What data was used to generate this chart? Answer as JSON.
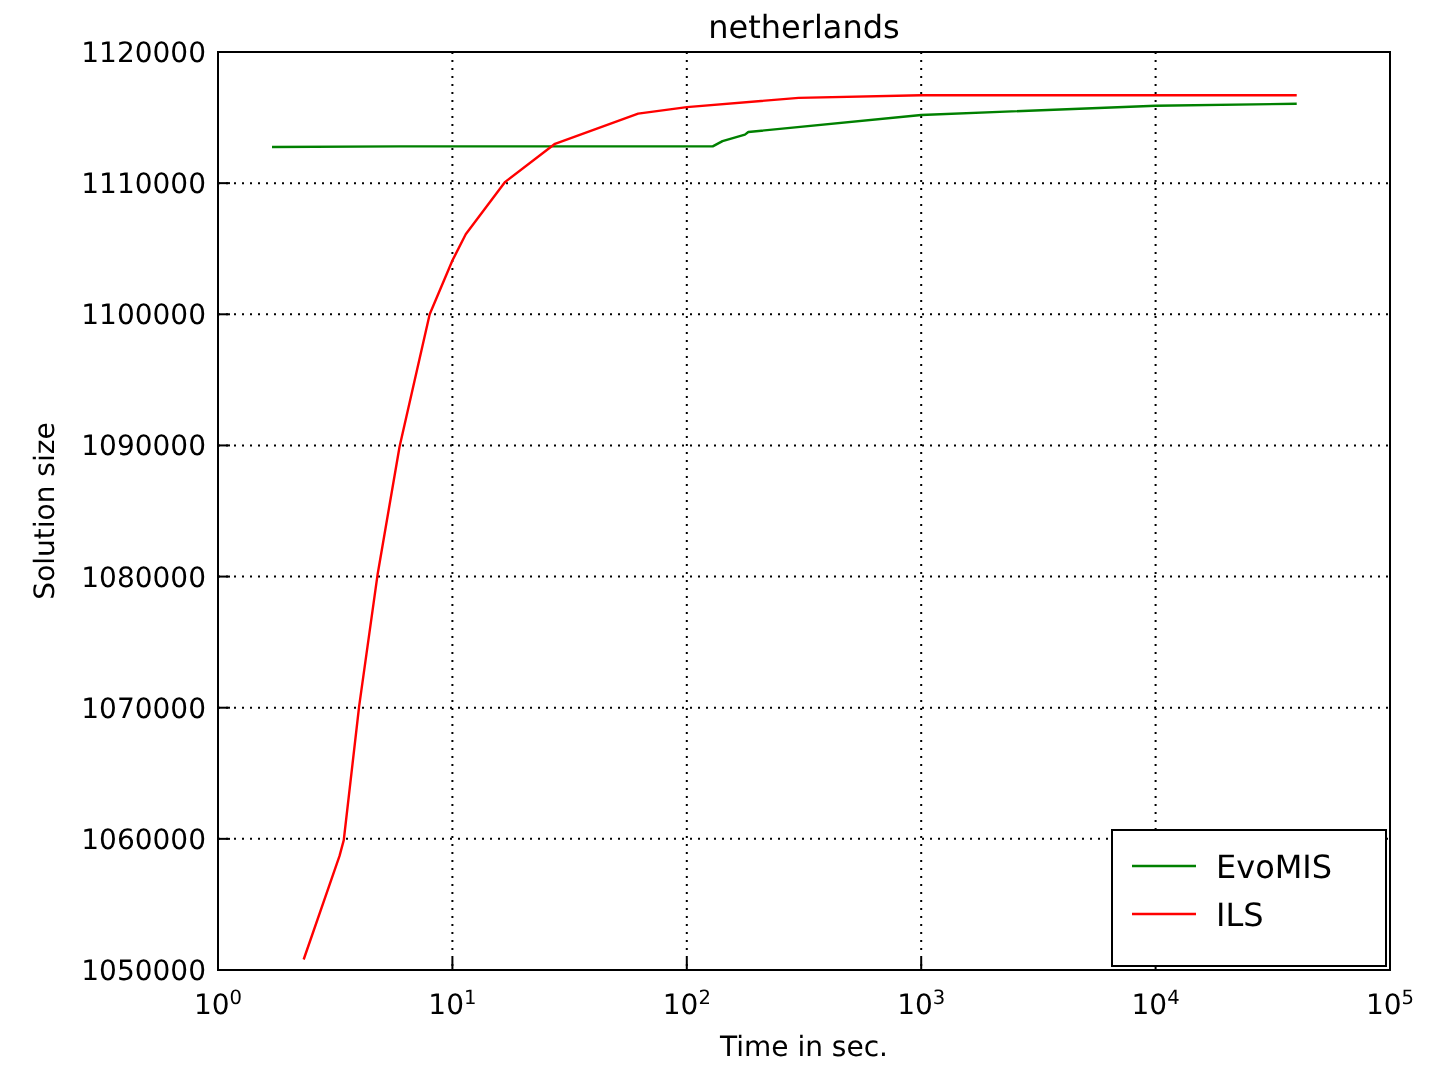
{
  "chart_data": {
    "type": "line",
    "title": "netherlands",
    "xlabel": "Time in sec.",
    "ylabel": "Solution size",
    "log": "x",
    "xlim": [
      1,
      100000
    ],
    "xticks": [
      {
        "value": 1,
        "label": "10$^{0}$"
      },
      {
        "value": 10,
        "label": "10$^{1}$"
      },
      {
        "value": 100,
        "label": "10$^{2}$"
      },
      {
        "value": 1000,
        "label": "10$^{3}$"
      },
      {
        "value": 10000,
        "label": "10$^{4}$"
      },
      {
        "value": 100000,
        "label": "10$^{5}$"
      }
    ],
    "ylim": [
      1050000,
      1120000
    ],
    "yticks": [
      1050000,
      1060000,
      1070000,
      1080000,
      1090000,
      1100000,
      1110000,
      1120000
    ],
    "grid": true,
    "legend": "bottom right",
    "line_style": "solid",
    "marker": "none",
    "series": [
      {
        "name": "EvoMIS",
        "color": "#008000",
        "x": [
          1.7,
          6,
          129,
          142,
          177,
          183,
          1000,
          10000,
          40000
        ],
        "values": [
          1112760,
          1112800,
          1112800,
          1113200,
          1113700,
          1113900,
          1115200,
          1115900,
          1116050
        ]
      },
      {
        "name": "ILS",
        "color": "#ff0000",
        "x": [
          2.32,
          3.3,
          3.44,
          4.0,
          4.8,
          5.95,
          8.0,
          10,
          11.4,
          16.8,
          27.4,
          62,
          100,
          300,
          1000,
          40000
        ],
        "values": [
          1050800,
          1058700,
          1059900,
          1070100,
          1080200,
          1089900,
          1100000,
          1104100,
          1106100,
          1110100,
          1113000,
          1115300,
          1115800,
          1116500,
          1116700,
          1116700
        ]
      }
    ]
  }
}
